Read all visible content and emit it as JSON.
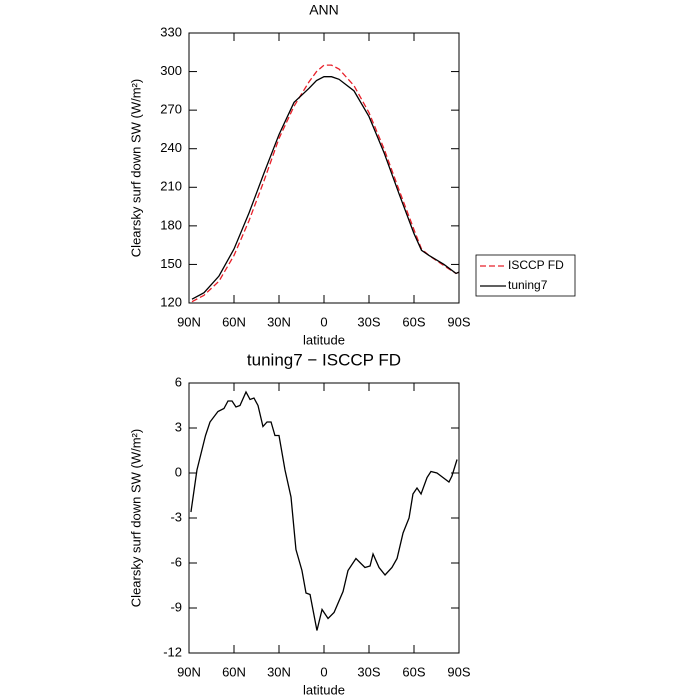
{
  "chart_data": [
    {
      "type": "line",
      "title": "ANN",
      "xlabel": "latitude",
      "ylabel": "Clearsky surf down SW (W/m²)",
      "x": [
        88,
        80,
        70,
        60,
        50,
        40,
        30,
        20,
        10,
        5,
        0,
        -5,
        -10,
        -20,
        -30,
        -40,
        -50,
        -60,
        -65,
        -70,
        -80,
        -88,
        -90
      ],
      "series": [
        {
          "name": "ISCCP FD",
          "color": "#e8202a",
          "dashed": true,
          "values": [
            121,
            126,
            137,
            157,
            184,
            215,
            248,
            273,
            292,
            300,
            305,
            305,
            302,
            289,
            268,
            240,
            208,
            177,
            162,
            157,
            149,
            143,
            144
          ]
        },
        {
          "name": "tuning7",
          "color": "#000000",
          "dashed": false,
          "values": [
            123,
            128,
            141,
            162,
            190,
            221,
            251,
            276,
            287,
            293,
            296,
            296,
            294,
            285,
            265,
            237,
            205,
            174,
            161,
            157,
            150,
            143,
            144
          ]
        }
      ],
      "xlim": [
        90,
        -90
      ],
      "xticks": [
        {
          "value": 90,
          "label": "90N"
        },
        {
          "value": 60,
          "label": "60N"
        },
        {
          "value": 30,
          "label": "30N"
        },
        0,
        {
          "value": -30,
          "label": "30S"
        },
        {
          "value": -60,
          "label": "60S"
        },
        {
          "value": -90,
          "label": "90S"
        }
      ],
      "ylim": [
        120,
        330
      ],
      "yticks": [
        120,
        150,
        180,
        210,
        240,
        270,
        300,
        330
      ],
      "legend": "right"
    },
    {
      "type": "line",
      "title": "tuning7 − ISCCP FD",
      "xlabel": "latitude",
      "ylabel": "Clearsky surf down SW (W/m²)",
      "x": [
        88.7,
        84.7,
        79,
        76,
        70.7,
        66.7,
        64,
        61.3,
        58.7,
        56,
        52,
        49.3,
        46.7,
        44,
        40.7,
        38,
        35.3,
        32.7,
        30,
        26,
        22,
        18.7,
        14.7,
        12,
        9.3,
        4.7,
        1.3,
        -2.7,
        -6.7,
        -12.7,
        -16,
        -21.3,
        -27.3,
        -30.7,
        -32.7,
        -36.7,
        -40.7,
        -45.3,
        -48.7,
        -52.7,
        -56.7,
        -59.3,
        -62,
        -64.7,
        -68.7,
        -71.3,
        -75.3,
        -79.3,
        -83.3,
        -85.3,
        -88.7
      ],
      "series": [
        {
          "color": "#000000",
          "dashed": false,
          "values": [
            -2.6,
            0.2,
            2.5,
            3.4,
            4.1,
            4.3,
            4.8,
            4.8,
            4.4,
            4.5,
            5.4,
            4.9,
            5.0,
            4.5,
            3.1,
            3.4,
            3.4,
            2.5,
            2.5,
            0.2,
            -1.6,
            -5.1,
            -6.5,
            -8,
            -8.1,
            -10.5,
            -9.1,
            -9.7,
            -9.3,
            -7.9,
            -6.5,
            -5.7,
            -6.3,
            -6.2,
            -5.4,
            -6.3,
            -6.8,
            -6.3,
            -5.7,
            -4,
            -3,
            -1.4,
            -1,
            -1.4,
            -0.3,
            0.1,
            0,
            -0.3,
            -0.6,
            -0.2,
            0.9
          ]
        }
      ],
      "xlim": [
        90,
        -90
      ],
      "xticks": [
        {
          "value": 90,
          "label": "90N"
        },
        {
          "value": 60,
          "label": "60N"
        },
        {
          "value": 30,
          "label": "30N"
        },
        0,
        {
          "value": -30,
          "label": "30S"
        },
        {
          "value": -60,
          "label": "60S"
        },
        {
          "value": -90,
          "label": "90S"
        }
      ],
      "ylim": [
        -12,
        6
      ],
      "yticks": [
        -12,
        -9,
        -6,
        -3,
        0,
        3,
        6
      ]
    }
  ]
}
